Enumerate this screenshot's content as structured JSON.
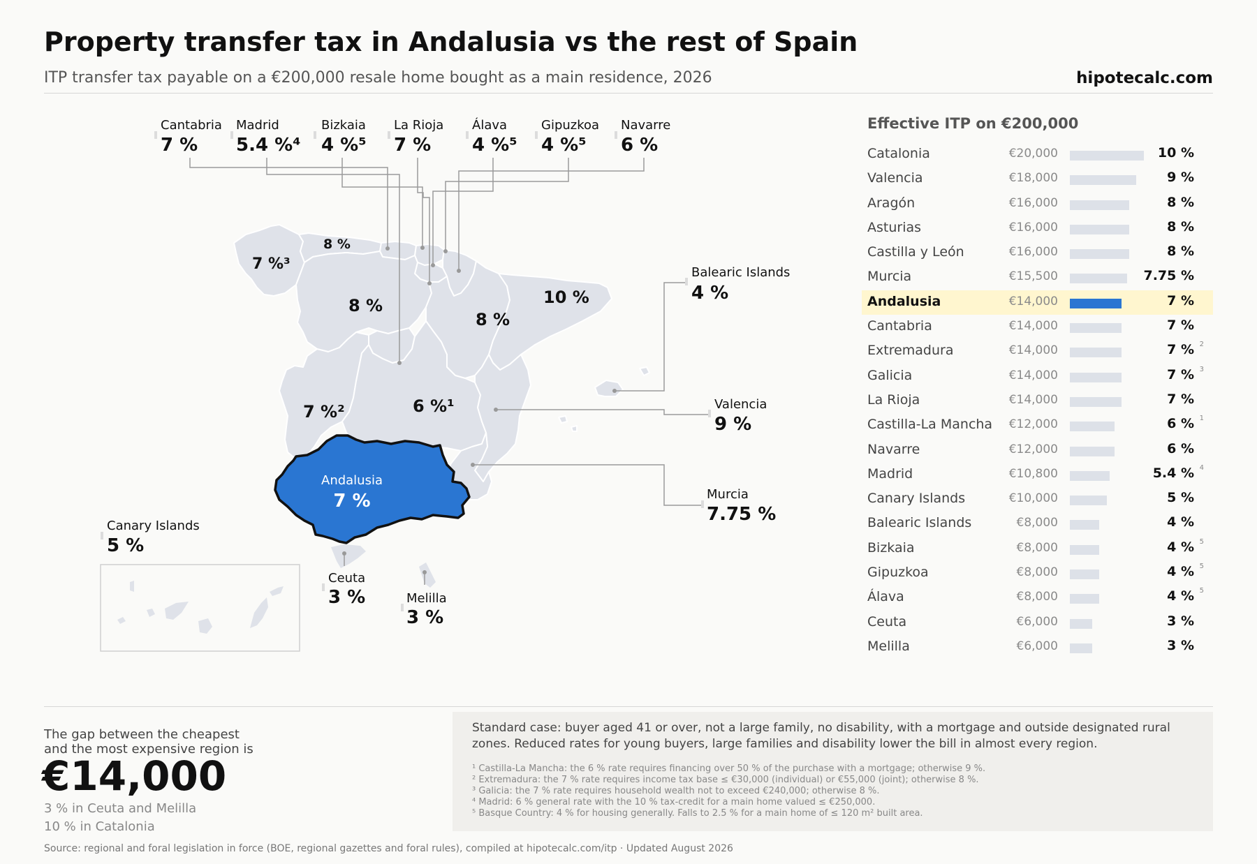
{
  "title": "Property transfer tax in Andalusia vs the rest of Spain",
  "subtitle": "ITP transfer tax payable on a €200,000 resale home bought as a main residence, 2026",
  "brand": "hipotecalc.com",
  "colors": {
    "highlight": "#2a76d2",
    "region_fill": "#dfe2e9",
    "bar": "#dde1e8",
    "highlight_row": "#fff6cf"
  },
  "map": {
    "top_callouts": [
      {
        "name": "Cantabria",
        "rate": "7 %"
      },
      {
        "name": "Madrid",
        "rate": "5.4 %⁴"
      },
      {
        "name": "Bizkaia",
        "rate": "4 %⁵"
      },
      {
        "name": "La Rioja",
        "rate": "7 %"
      },
      {
        "name": "Álava",
        "rate": "4 %⁵"
      },
      {
        "name": "Gipuzkoa",
        "rate": "4 %⁵"
      },
      {
        "name": "Navarre",
        "rate": "6 %"
      }
    ],
    "side_callouts": [
      {
        "name": "Balearic Islands",
        "rate": "4 %"
      },
      {
        "name": "Valencia",
        "rate": "9 %"
      },
      {
        "name": "Murcia",
        "rate": "7.75 %"
      },
      {
        "name": "Canary Islands",
        "rate": "5 %"
      },
      {
        "name": "Ceuta",
        "rate": "3 %"
      },
      {
        "name": "Melilla",
        "rate": "3 %"
      }
    ],
    "inline_rates": {
      "asturias": "8 %",
      "galicia": "7 %³",
      "castilla_leon": "8 %",
      "aragon": "8 %",
      "catalonia": "10 %",
      "extremadura": "7 %²",
      "castilla_la_mancha": "6 %¹"
    },
    "highlight": {
      "name": "Andalusia",
      "rate": "7 %"
    }
  },
  "ranking": {
    "title": "Effective ITP on €200,000",
    "rows": [
      {
        "name": "Catalonia",
        "amount": "€20,000",
        "rate": "10 %",
        "value": 10,
        "note": ""
      },
      {
        "name": "Valencia",
        "amount": "€18,000",
        "rate": "9 %",
        "value": 9,
        "note": ""
      },
      {
        "name": "Aragón",
        "amount": "€16,000",
        "rate": "8 %",
        "value": 8,
        "note": ""
      },
      {
        "name": "Asturias",
        "amount": "€16,000",
        "rate": "8 %",
        "value": 8,
        "note": ""
      },
      {
        "name": "Castilla y León",
        "amount": "€16,000",
        "rate": "8 %",
        "value": 8,
        "note": ""
      },
      {
        "name": "Murcia",
        "amount": "€15,500",
        "rate": "7.75 %",
        "value": 7.75,
        "note": ""
      },
      {
        "name": "Andalusia",
        "amount": "€14,000",
        "rate": "7 %",
        "value": 7,
        "note": "",
        "highlight": true
      },
      {
        "name": "Cantabria",
        "amount": "€14,000",
        "rate": "7 %",
        "value": 7,
        "note": ""
      },
      {
        "name": "Extremadura",
        "amount": "€14,000",
        "rate": "7 %",
        "value": 7,
        "note": "2"
      },
      {
        "name": "Galicia",
        "amount": "€14,000",
        "rate": "7 %",
        "value": 7,
        "note": "3"
      },
      {
        "name": "La Rioja",
        "amount": "€14,000",
        "rate": "7 %",
        "value": 7,
        "note": ""
      },
      {
        "name": "Castilla-La Mancha",
        "amount": "€12,000",
        "rate": "6 %",
        "value": 6,
        "note": "1"
      },
      {
        "name": "Navarre",
        "amount": "€12,000",
        "rate": "6 %",
        "value": 6,
        "note": ""
      },
      {
        "name": "Madrid",
        "amount": "€10,800",
        "rate": "5.4 %",
        "value": 5.4,
        "note": "4"
      },
      {
        "name": "Canary Islands",
        "amount": "€10,000",
        "rate": "5 %",
        "value": 5,
        "note": ""
      },
      {
        "name": "Balearic Islands",
        "amount": "€8,000",
        "rate": "4 %",
        "value": 4,
        "note": ""
      },
      {
        "name": "Bizkaia",
        "amount": "€8,000",
        "rate": "4 %",
        "value": 4,
        "note": "5"
      },
      {
        "name": "Gipuzkoa",
        "amount": "€8,000",
        "rate": "4 %",
        "value": 4,
        "note": "5"
      },
      {
        "name": "Álava",
        "amount": "€8,000",
        "rate": "4 %",
        "value": 4,
        "note": "5"
      },
      {
        "name": "Ceuta",
        "amount": "€6,000",
        "rate": "3 %",
        "value": 3,
        "note": ""
      },
      {
        "name": "Melilla",
        "amount": "€6,000",
        "rate": "3 %",
        "value": 3,
        "note": ""
      }
    ]
  },
  "chart_data": {
    "type": "bar",
    "title": "Effective ITP on €200,000",
    "categories": [
      "Catalonia",
      "Valencia",
      "Aragón",
      "Asturias",
      "Castilla y León",
      "Murcia",
      "Andalusia",
      "Cantabria",
      "Extremadura",
      "Galicia",
      "La Rioja",
      "Castilla-La Mancha",
      "Navarre",
      "Madrid",
      "Canary Islands",
      "Balearic Islands",
      "Bizkaia",
      "Gipuzkoa",
      "Álava",
      "Ceuta",
      "Melilla"
    ],
    "values": [
      20000,
      18000,
      16000,
      16000,
      16000,
      15500,
      14000,
      14000,
      14000,
      14000,
      14000,
      12000,
      12000,
      10800,
      10000,
      8000,
      8000,
      8000,
      8000,
      6000,
      6000
    ],
    "rates_percent": [
      10,
      9,
      8,
      8,
      8,
      7.75,
      7,
      7,
      7,
      7,
      7,
      6,
      6,
      5.4,
      5,
      4,
      4,
      4,
      4,
      3,
      3
    ],
    "highlight": "Andalusia",
    "orientation": "horizontal"
  },
  "gap": {
    "text_line1": "The gap between the cheapest",
    "text_line2": "and the most expensive region is",
    "value": "€14,000",
    "low": "3 % in Ceuta and Melilla",
    "high": "10 % in Catalonia"
  },
  "notes": {
    "main": "Standard case: buyer aged 41 or over, not a large family, no disability, with a mortgage and outside designated rural zones. Reduced rates for young buyers, large families and disability lower the bill in almost every region.",
    "footnotes": [
      "¹ Castilla-La Mancha: the 6 % rate requires financing over 50 % of the purchase with a mortgage; otherwise 9 %.",
      "² Extremadura: the 7 % rate requires income tax base ≤ €30,000 (individual) or €55,000 (joint); otherwise 8 %.",
      "³ Galicia: the 7 % rate requires household wealth not to exceed €240,000; otherwise 8 %.",
      "⁴ Madrid: 6 % general rate with the 10 % tax-credit for a main home valued ≤ €250,000.",
      "⁵ Basque Country: 4 % for housing generally. Falls to 2.5 % for a main home of ≤ 120 m² built area."
    ]
  },
  "source": "Source: regional and foral legislation in force (BOE, regional gazettes and foral rules), compiled at hipotecalc.com/itp · Updated August 2026"
}
